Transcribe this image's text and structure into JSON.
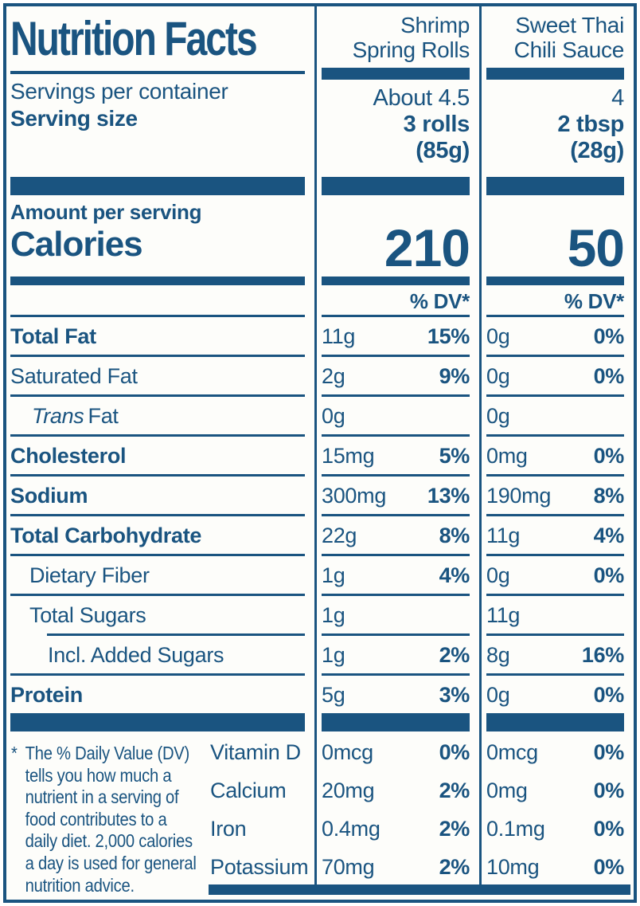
{
  "colors": {
    "blue": "#1a5480",
    "background": "#fdfdfa"
  },
  "nutrition": {
    "title": "Nutrition Facts",
    "servings_per_container_label": "Servings per container",
    "serving_size_label": "Serving size",
    "amount_per_serving_label": "Amount per serving",
    "calories_label": "Calories",
    "dv_header": "% DV*",
    "columns": [
      {
        "name_line1": "Shrimp",
        "name_line2": "Spring Rolls",
        "servings_per_container": "About 4.5",
        "serving_size": "3 rolls",
        "serving_weight": "(85g)",
        "calories": "210"
      },
      {
        "name_line1": "Sweet Thai",
        "name_line2": "Chili Sauce",
        "servings_per_container": "4",
        "serving_size": "2 tbsp",
        "serving_weight": "(28g)",
        "calories": "50"
      }
    ],
    "nutrients": [
      {
        "label": "Total Fat",
        "c1_amount": "11g",
        "c1_dv": "15%",
        "c2_amount": "0g",
        "c2_dv": "0%"
      },
      {
        "label": "Saturated Fat",
        "c1_amount": "2g",
        "c1_dv": "9%",
        "c2_amount": "0g",
        "c2_dv": "0%"
      },
      {
        "label_italic": "Trans",
        "label_rest": "Fat",
        "c1_amount": "0g",
        "c1_dv": "",
        "c2_amount": "0g",
        "c2_dv": ""
      },
      {
        "label": "Cholesterol",
        "c1_amount": "15mg",
        "c1_dv": "5%",
        "c2_amount": "0mg",
        "c2_dv": "0%"
      },
      {
        "label": "Sodium",
        "c1_amount": "300mg",
        "c1_dv": "13%",
        "c2_amount": "190mg",
        "c2_dv": "8%"
      },
      {
        "label": "Total Carbohydrate",
        "c1_amount": "22g",
        "c1_dv": "8%",
        "c2_amount": "11g",
        "c2_dv": "4%"
      },
      {
        "label": "Dietary Fiber",
        "c1_amount": "1g",
        "c1_dv": "4%",
        "c2_amount": "0g",
        "c2_dv": "0%"
      },
      {
        "label": "Total Sugars",
        "c1_amount": "1g",
        "c1_dv": "",
        "c2_amount": "11g",
        "c2_dv": ""
      },
      {
        "label": "Incl. Added Sugars",
        "c1_amount": "1g",
        "c1_dv": "2%",
        "c2_amount": "8g",
        "c2_dv": "16%"
      },
      {
        "label": "Protein",
        "c1_amount": "5g",
        "c1_dv": "3%",
        "c2_amount": "0g",
        "c2_dv": "0%"
      }
    ],
    "vitamins": [
      {
        "label": "Vitamin D",
        "c1_amount": "0mcg",
        "c1_dv": "0%",
        "c2_amount": "0mcg",
        "c2_dv": "0%"
      },
      {
        "label": "Calcium",
        "c1_amount": "20mg",
        "c1_dv": "2%",
        "c2_amount": "0mg",
        "c2_dv": "0%"
      },
      {
        "label": "Iron",
        "c1_amount": "0.4mg",
        "c1_dv": "2%",
        "c2_amount": "0.1mg",
        "c2_dv": "0%"
      },
      {
        "label": "Potassium",
        "c1_amount": "70mg",
        "c1_dv": "2%",
        "c2_amount": "10mg",
        "c2_dv": "0%"
      }
    ],
    "footnote_marker": "*",
    "footnote": "The % Daily Value (DV)\ntells you how much a\nnutrient in a serving of\nfood contributes to a\ndaily diet. 2,000 calories\na day is used for general\nnutrition advice."
  }
}
